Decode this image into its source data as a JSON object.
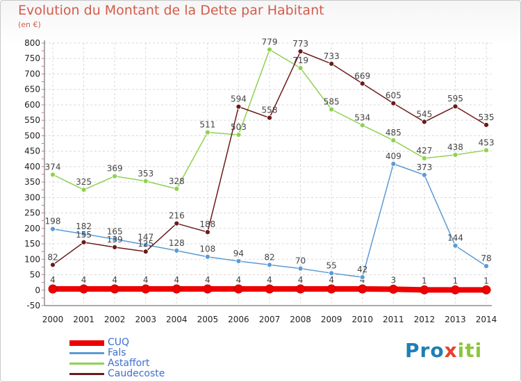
{
  "chart_data": {
    "type": "line",
    "title": "Evolution du Montant de la Dette par Habitant",
    "subtitle": "(en €)",
    "x": [
      "2000",
      "2001",
      "2002",
      "2003",
      "2004",
      "2005",
      "2006",
      "2007",
      "2008",
      "2009",
      "2010",
      "2011",
      "2012",
      "2013",
      "2014"
    ],
    "ylim": [
      -50,
      800
    ],
    "yticks": [
      -50,
      0,
      50,
      100,
      150,
      200,
      250,
      300,
      350,
      400,
      450,
      500,
      550,
      600,
      650,
      700,
      750,
      800
    ],
    "grid": true,
    "legend_position": "bottom-left",
    "series": [
      {
        "name": "CUQ",
        "color": "#ee0000",
        "values": [
          4,
          4,
          4,
          4,
          4,
          4,
          4,
          4,
          4,
          4,
          4,
          3,
          1,
          1,
          1
        ]
      },
      {
        "name": "Fals",
        "color": "#5b9bd5",
        "values": [
          198,
          182,
          165,
          147,
          128,
          108,
          94,
          82,
          70,
          55,
          42,
          409,
          373,
          144,
          78
        ]
      },
      {
        "name": "Astaffort",
        "color": "#8fd14f",
        "values": [
          374,
          325,
          369,
          353,
          328,
          511,
          503,
          779,
          719,
          585,
          534,
          485,
          427,
          438,
          453
        ]
      },
      {
        "name": "Caudecoste",
        "color": "#6b1a1a",
        "values": [
          82,
          155,
          139,
          125,
          216,
          188,
          594,
          558,
          773,
          733,
          669,
          605,
          545,
          595,
          535
        ]
      }
    ]
  },
  "logo_text": {
    "p1": "Pro",
    "x": "x",
    "p2": "iti"
  }
}
